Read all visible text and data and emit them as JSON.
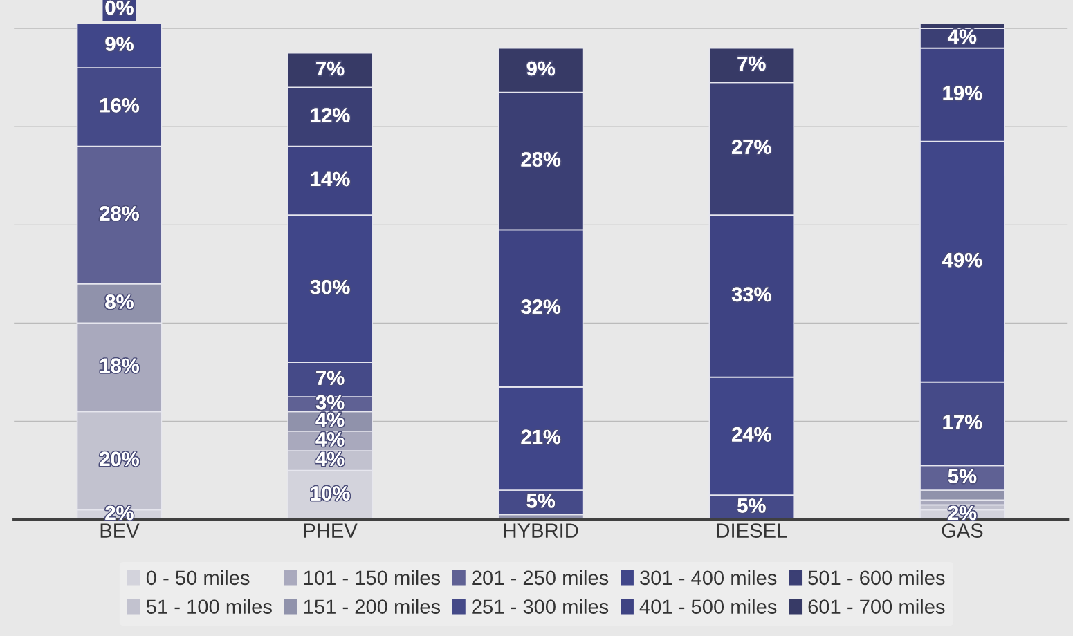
{
  "chart_data": {
    "type": "bar",
    "stacked": true,
    "grid": "y",
    "legend": "bottom",
    "tick_labels": "x",
    "categories": [
      "BEV",
      "PHEV",
      "HYBRID",
      "DIESEL",
      "GAS"
    ],
    "series": [
      {
        "name": "0 - 50 miles",
        "color": "#d3d3dc",
        "values": [
          2,
          10,
          0,
          0,
          2
        ],
        "value_labels": [
          "2%",
          "10%",
          null,
          null,
          "2%"
        ]
      },
      {
        "name": "51 - 100 miles",
        "color": "#c2c2cf",
        "values": [
          20,
          4,
          0,
          0,
          1
        ],
        "value_labels": [
          "20%",
          "4%",
          null,
          null,
          null
        ]
      },
      {
        "name": "101 - 150 miles",
        "color": "#a9a9bd",
        "values": [
          18,
          4,
          0,
          0,
          1
        ],
        "value_labels": [
          "18%",
          "4%",
          null,
          null,
          null
        ]
      },
      {
        "name": "151 - 200 miles",
        "color": "#9092ab",
        "values": [
          8,
          4,
          1,
          0,
          2
        ],
        "value_labels": [
          "8%",
          "4%",
          null,
          null,
          null
        ]
      },
      {
        "name": "201 - 250 miles",
        "color": "#5f6194",
        "values": [
          28,
          3,
          0,
          0,
          5
        ],
        "value_labels": [
          "28%",
          "3%",
          null,
          null,
          "5%"
        ]
      },
      {
        "name": "251 - 300 miles",
        "color": "#454a88",
        "values": [
          16,
          7,
          5,
          5,
          17
        ],
        "value_labels": [
          "16%",
          "7%",
          "5%",
          "5%",
          "17%"
        ]
      },
      {
        "name": "301 - 400 miles",
        "color": "#404689",
        "values": [
          9,
          30,
          21,
          24,
          49
        ],
        "value_labels": [
          "9%",
          "30%",
          "21%",
          "24%",
          "49%"
        ]
      },
      {
        "name": "401 - 500 miles",
        "color": "#3e4383",
        "values": [
          0,
          14,
          32,
          33,
          19
        ],
        "value_labels": [
          "0%",
          "14%",
          "32%",
          "33%",
          "19%"
        ]
      },
      {
        "name": "501 - 600 miles",
        "color": "#3b3f74",
        "values": [
          0,
          12,
          28,
          27,
          4
        ],
        "value_labels": [
          null,
          "12%",
          "28%",
          "27%",
          "4%"
        ]
      },
      {
        "name": "601 - 700 miles",
        "color": "#373a66",
        "values": [
          0,
          7,
          9,
          7,
          1
        ],
        "value_labels": [
          null,
          "7%",
          "9%",
          "7%",
          null
        ]
      }
    ]
  }
}
